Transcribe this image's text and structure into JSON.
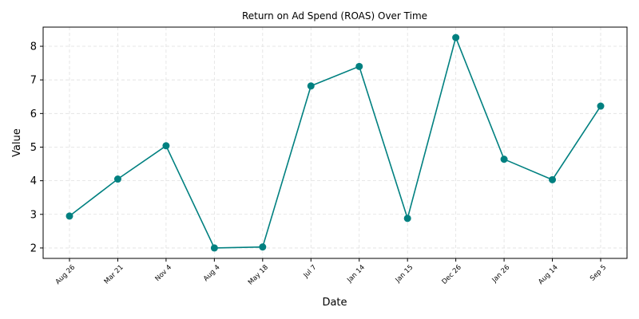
{
  "chart_data": {
    "type": "line",
    "title": "Return on Ad Spend (ROAS) Over Time",
    "xlabel": "Date",
    "ylabel": "Value",
    "categories": [
      "Aug 26",
      "Mar 21",
      "Nov 4",
      "Aug 4",
      "May 18",
      "Jul 7",
      "Jan 14",
      "Jan 15",
      "Dec 26",
      "Jan 26",
      "Aug 14",
      "Sep 5"
    ],
    "values": [
      2.95,
      4.05,
      5.04,
      2.0,
      2.03,
      6.82,
      7.4,
      2.88,
      8.26,
      4.64,
      4.03,
      6.22
    ],
    "ylim": [
      1.69,
      8.57
    ],
    "yticks": [
      2,
      3,
      4,
      5,
      6,
      7,
      8
    ],
    "grid": true,
    "color": "#008080"
  }
}
